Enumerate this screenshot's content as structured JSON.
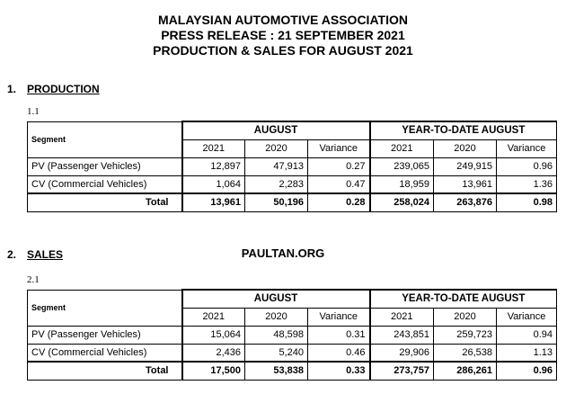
{
  "header": {
    "line1": "MALAYSIAN AUTOMOTIVE ASSOCIATION",
    "line2": "PRESS RELEASE :   21 SEPTEMBER 2021",
    "line3": "PRODUCTION & SALES FOR AUGUST 2021"
  },
  "watermark": "PAULTAN.ORG",
  "sections": [
    {
      "number": "1.",
      "title": "PRODUCTION",
      "sub": "1.1",
      "segment_label": "Segment",
      "group1": "AUGUST",
      "group2": "YEAR-TO-DATE AUGUST",
      "years": [
        "2021",
        "2020",
        "Variance",
        "2021",
        "2020",
        "Variance"
      ],
      "rows": [
        {
          "segment": "PV (Passenger Vehicles)",
          "values": [
            "12,897",
            "47,913",
            "0.27",
            "239,065",
            "249,915",
            "0.96"
          ]
        },
        {
          "segment": "CV (Commercial Vehicles)",
          "values": [
            "1,064",
            "2,283",
            "0.47",
            "18,959",
            "13,961",
            "1.36"
          ]
        }
      ],
      "total": {
        "label": "Total",
        "values": [
          "13,961",
          "50,196",
          "0.28",
          "258,024",
          "263,876",
          "0.98"
        ]
      }
    },
    {
      "number": "2.",
      "title": "SALES",
      "sub": "2.1",
      "segment_label": "Segment",
      "group1": "AUGUST",
      "group2": "YEAR-TO-DATE AUGUST",
      "years": [
        "2021",
        "2020",
        "Variance",
        "2021",
        "2020",
        "Variance"
      ],
      "rows": [
        {
          "segment": "PV (Passenger Vehicles)",
          "values": [
            "15,064",
            "48,598",
            "0.31",
            "243,851",
            "259,723",
            "0.94"
          ]
        },
        {
          "segment": "CV (Commercial Vehicles)",
          "values": [
            "2,436",
            "5,240",
            "0.46",
            "29,906",
            "26,538",
            "1.13"
          ]
        }
      ],
      "total": {
        "label": "Total",
        "values": [
          "17,500",
          "53,838",
          "0.33",
          "273,757",
          "286,261",
          "0.96"
        ]
      }
    }
  ]
}
